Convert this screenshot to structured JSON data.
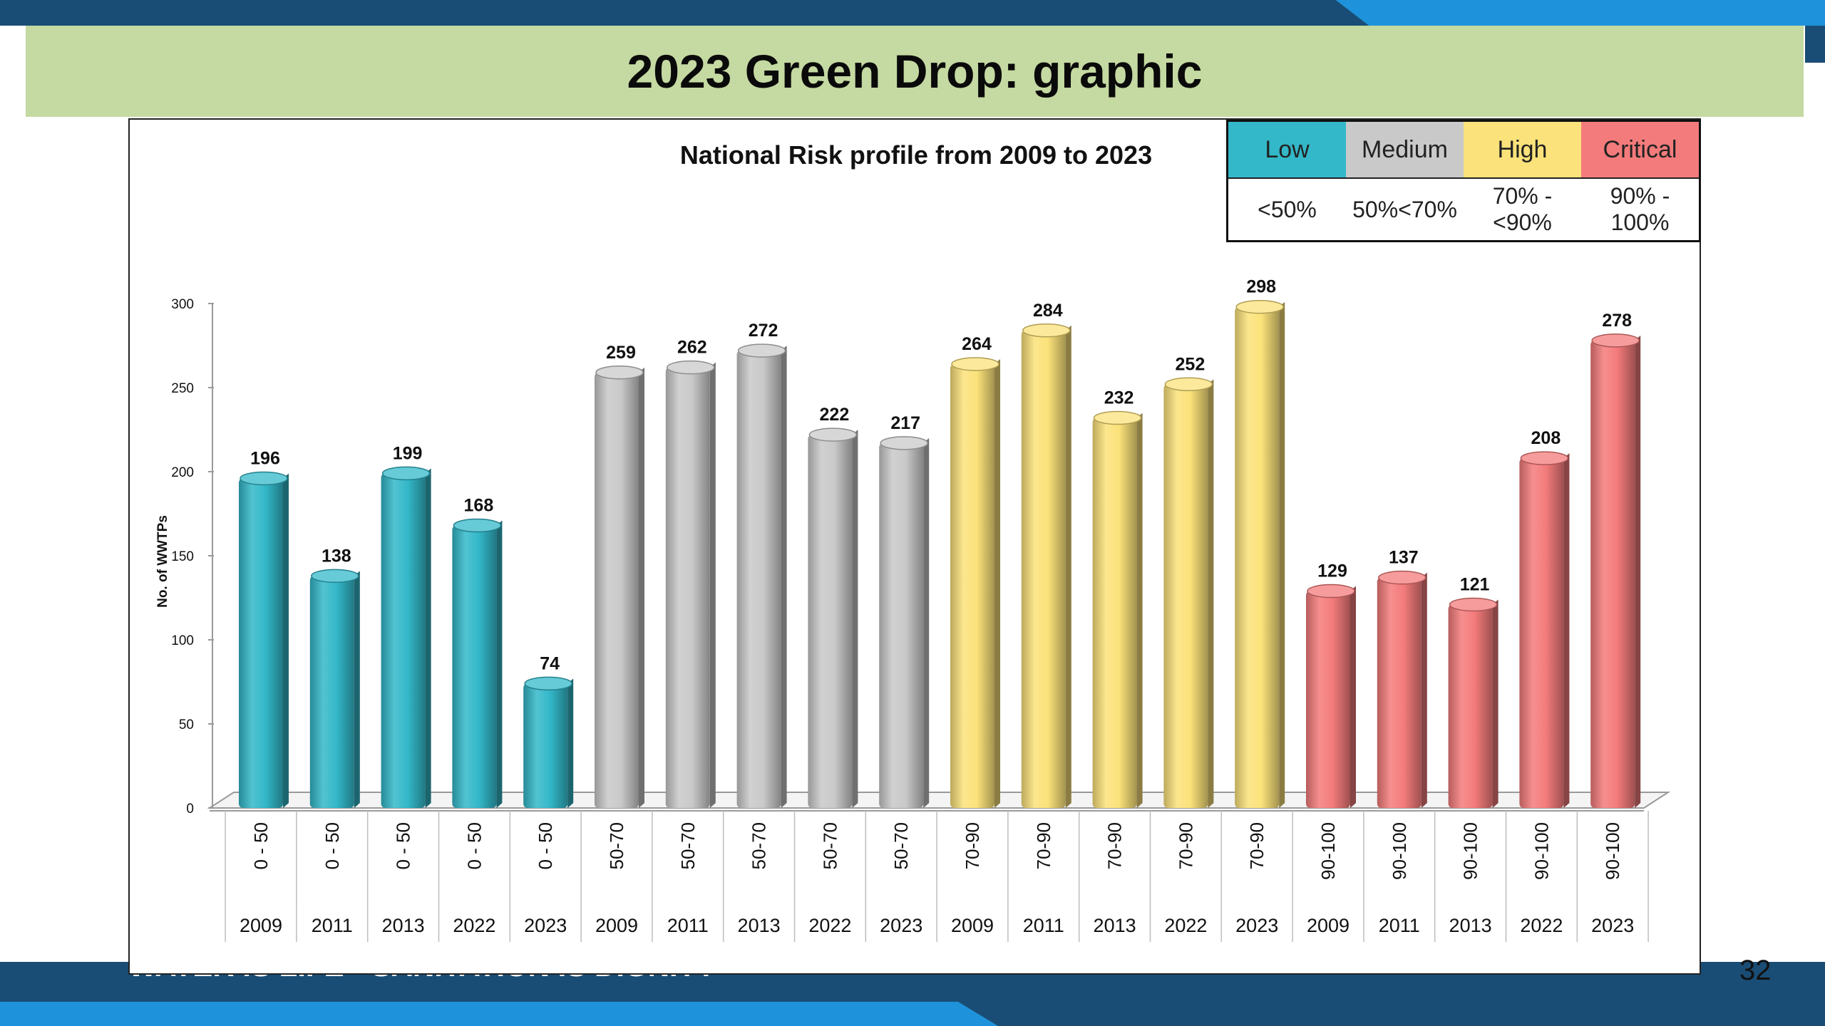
{
  "slide": {
    "title": "2023 Green Drop: graphic",
    "footer_slogan": "WATER IS LIFE • SANITATION IS DIGNITY",
    "page_number": "32"
  },
  "legend": {
    "items": [
      {
        "label": "Low",
        "range": "<50%",
        "color": "#33b8c9"
      },
      {
        "label": "Medium",
        "range": "50%<70%",
        "color": "#c9c9c9"
      },
      {
        "label": "High",
        "range": "70% - <90%",
        "color": "#fbe27a"
      },
      {
        "label": "Critical",
        "range": "90% - 100%",
        "color": "#f47b7b"
      }
    ]
  },
  "chart_data": {
    "type": "bar",
    "title": "National Risk profile from 2009 to 2023",
    "ylabel": "No. of WWTPs",
    "ylim": [
      0,
      300
    ],
    "yticks": [
      0,
      50,
      100,
      150,
      200,
      250,
      300
    ],
    "grid": false,
    "categories": [
      {
        "group": "0 - 50",
        "year": "2009"
      },
      {
        "group": "0 - 50",
        "year": "2011"
      },
      {
        "group": "0 - 50",
        "year": "2013"
      },
      {
        "group": "0 - 50",
        "year": "2022"
      },
      {
        "group": "0 - 50",
        "year": "2023"
      },
      {
        "group": "50-70",
        "year": "2009"
      },
      {
        "group": "50-70",
        "year": "2011"
      },
      {
        "group": "50-70",
        "year": "2013"
      },
      {
        "group": "50-70",
        "year": "2022"
      },
      {
        "group": "50-70",
        "year": "2023"
      },
      {
        "group": "70-90",
        "year": "2009"
      },
      {
        "group": "70-90",
        "year": "2011"
      },
      {
        "group": "70-90",
        "year": "2013"
      },
      {
        "group": "70-90",
        "year": "2022"
      },
      {
        "group": "70-90",
        "year": "2023"
      },
      {
        "group": "90-100",
        "year": "2009"
      },
      {
        "group": "90-100",
        "year": "2011"
      },
      {
        "group": "90-100",
        "year": "2013"
      },
      {
        "group": "90-100",
        "year": "2022"
      },
      {
        "group": "90-100",
        "year": "2023"
      }
    ],
    "values": [
      196,
      138,
      199,
      168,
      74,
      259,
      262,
      272,
      222,
      217,
      264,
      284,
      232,
      252,
      298,
      129,
      137,
      121,
      208,
      278
    ],
    "group_colors": {
      "0 - 50": "#33b8c9",
      "50-70": "#c9c9c9",
      "70-90": "#fbe27a",
      "90-100": "#f47b7b"
    }
  }
}
